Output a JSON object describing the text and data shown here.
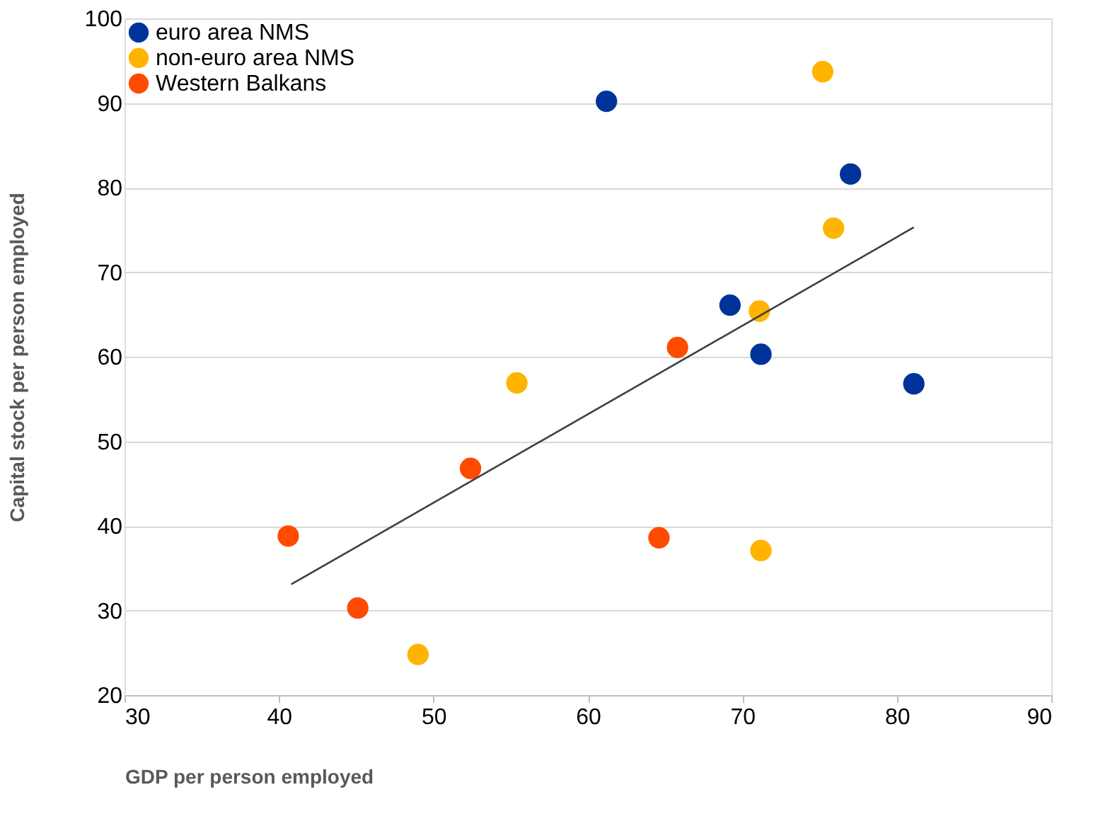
{
  "chart_data": {
    "type": "scatter",
    "xlabel": "GDP per person employed",
    "ylabel": "Capital stock per person employed",
    "xlim": [
      30,
      90
    ],
    "ylim": [
      20,
      100
    ],
    "xticks": [
      30,
      40,
      50,
      60,
      70,
      80,
      90
    ],
    "yticks": [
      20,
      30,
      40,
      50,
      60,
      70,
      80,
      90,
      100
    ],
    "grid": "y",
    "legend": "top left",
    "marker": "circle",
    "series": [
      {
        "name": "euro area NMS",
        "color": "#003399",
        "x": [
          61.2,
          77.0,
          69.2,
          71.2,
          81.1
        ],
        "values": [
          90.2,
          81.6,
          66.1,
          60.3,
          56.8
        ]
      },
      {
        "name": "non-euro area NMS",
        "color": "#ffb400",
        "x": [
          75.2,
          75.9,
          71.1,
          55.4,
          71.2,
          49.0
        ],
        "values": [
          93.7,
          75.2,
          65.4,
          56.9,
          37.1,
          24.8
        ]
      },
      {
        "name": "Western Balkans",
        "color": "#ff4b00",
        "x": [
          40.6,
          45.1,
          52.4,
          65.8,
          64.6
        ],
        "values": [
          38.8,
          30.3,
          46.8,
          61.1,
          38.6
        ]
      },
      {
        "type": "line",
        "color": "#404040",
        "x": [
          40.8,
          81.1
        ],
        "values": [
          33.1,
          75.3
        ],
        "line_style": "solid",
        "marker": "none"
      }
    ]
  }
}
